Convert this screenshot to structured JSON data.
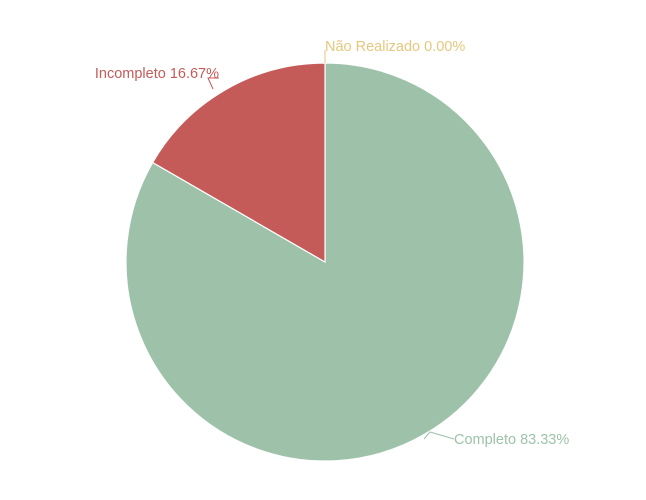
{
  "chart_data": {
    "type": "pie",
    "slices": [
      {
        "label": "Completo",
        "value": 83.33,
        "display": "Completo 83.33%",
        "color": "#9dc2a9"
      },
      {
        "label": "Não Realizado",
        "value": 0.0,
        "display": "Não Realizado 0.00%",
        "color": "#e6c77d"
      },
      {
        "label": "Incompleto",
        "value": 16.67,
        "display": "Incompleto 16.67%",
        "color": "#c45b59"
      }
    ],
    "start": "top",
    "direction": "clockwise"
  }
}
